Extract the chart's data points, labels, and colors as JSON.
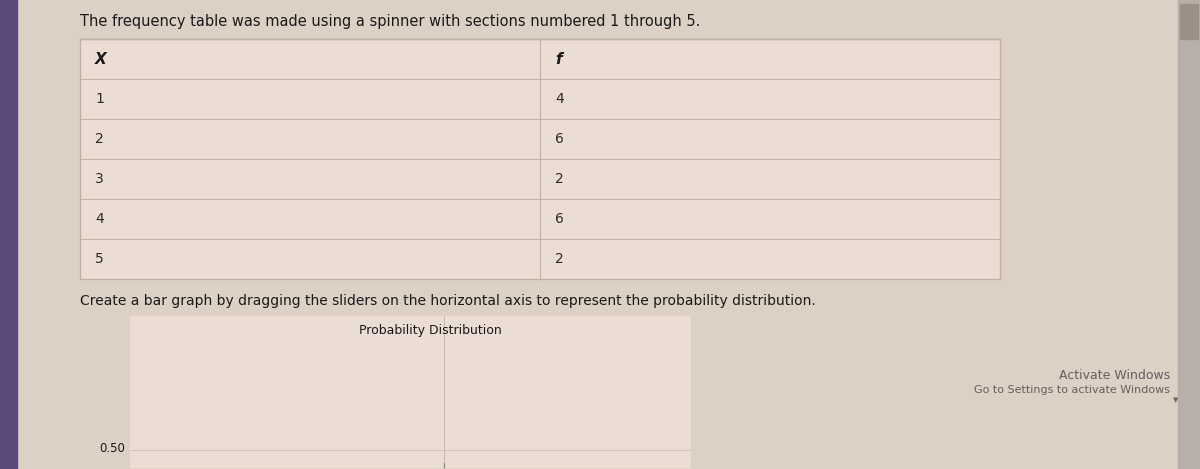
{
  "title_text": "The frequency table was made using a spinner with sections numbered 1 through 5.",
  "table_headers": [
    "X",
    "f"
  ],
  "table_rows": [
    [
      "1",
      "4"
    ],
    [
      "2",
      "6"
    ],
    [
      "3",
      "2"
    ],
    [
      "4",
      "6"
    ],
    [
      "5",
      "2"
    ]
  ],
  "instruction_text": "Create a bar graph by dragging the sliders on the horizontal axis to represent the probability distribution.",
  "chart_title": "Probability Distribution",
  "chart_ylabel_value": "0.50",
  "activate_text": "Activate Windows",
  "activate_subtext": "Go to Settings to activate Windows",
  "bg_color": "#ddd0c4",
  "table_bg": "#ecddd4",
  "table_line_color": "#c0b0a4",
  "header_text_color": "#1a1a1a",
  "cell_text_color": "#2a2a2a",
  "chart_bg": "#ecddd4",
  "chart_border_color": "#c8b8ac",
  "title_fontsize": 10.5,
  "table_fontsize": 10,
  "instruction_fontsize": 10,
  "chart_title_fontsize": 9,
  "activate_fontsize": 8,
  "purple_bar_color": "#5a4a7a",
  "scrollbar_bg": "#b8b0a8",
  "scrollbar_handle": "#9a9088"
}
